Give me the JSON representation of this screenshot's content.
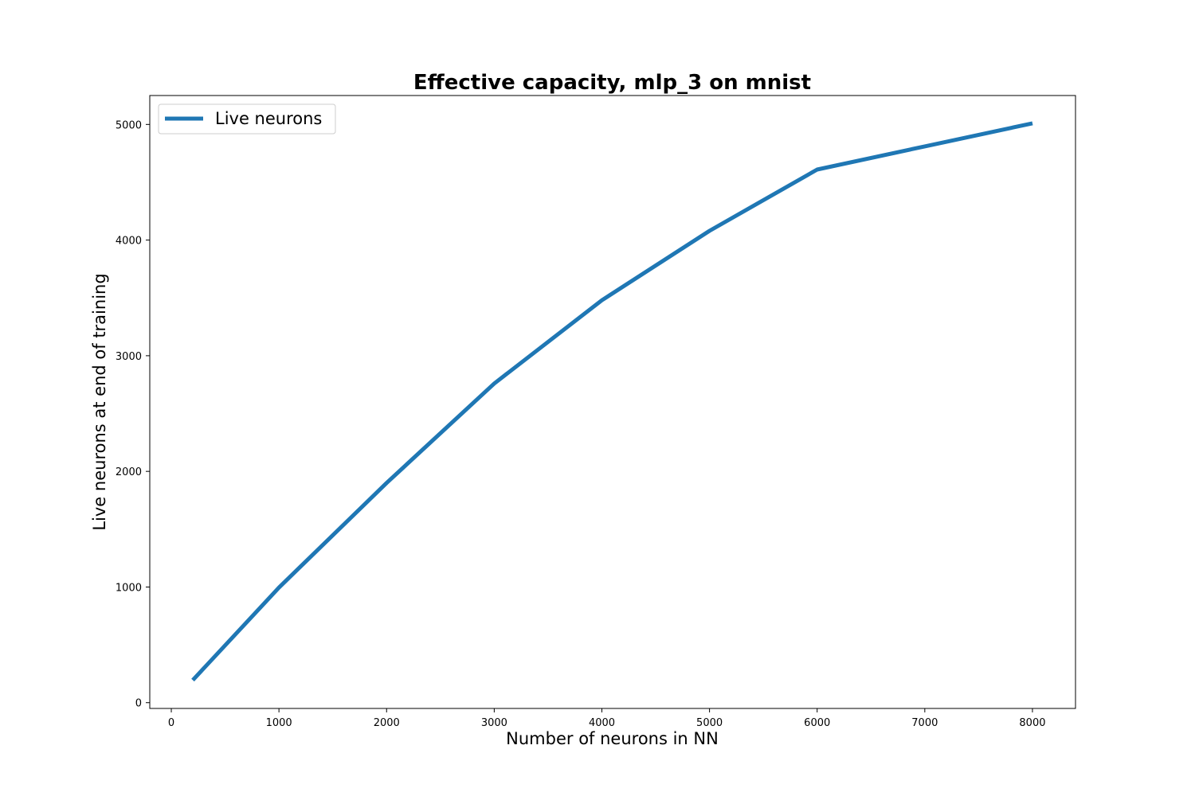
{
  "chart_data": {
    "type": "line",
    "title": "Effective capacity, mlp_3 on mnist",
    "xlabel": "Number of neurons in NN",
    "ylabel": "Live neurons at end of training",
    "xlim": [
      -200,
      8400
    ],
    "ylim": [
      -50,
      5250
    ],
    "xticks": [
      0,
      1000,
      2000,
      3000,
      4000,
      5000,
      6000,
      7000,
      8000
    ],
    "yticks": [
      0,
      1000,
      2000,
      3000,
      4000,
      5000
    ],
    "grid": false,
    "legend_position": "top-left",
    "series": [
      {
        "name": "Live neurons",
        "color": "#1f77b4",
        "x": [
          200,
          1000,
          2000,
          3000,
          4000,
          5000,
          6000,
          7000,
          8000
        ],
        "y": [
          195,
          995,
          1900,
          2760,
          3480,
          4080,
          4610,
          4810,
          5010
        ]
      }
    ]
  }
}
